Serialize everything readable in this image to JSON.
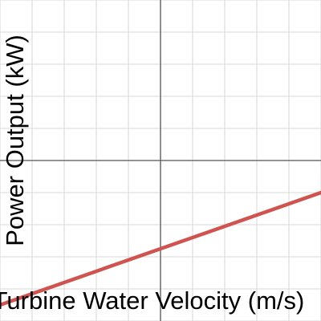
{
  "chart_data": {
    "type": "line",
    "xlabel": "Turbine Water Velocity (m/s)",
    "ylabel": "Power Output (kW)",
    "xlim": [
      -5,
      5
    ],
    "ylim": [
      -5,
      5
    ],
    "grid": true,
    "axis_ticks_labeled": false,
    "series": [
      {
        "color": "#cf5450",
        "x": [
          -5,
          5
        ],
        "y": [
          -4.5,
          -1
        ]
      }
    ]
  }
}
